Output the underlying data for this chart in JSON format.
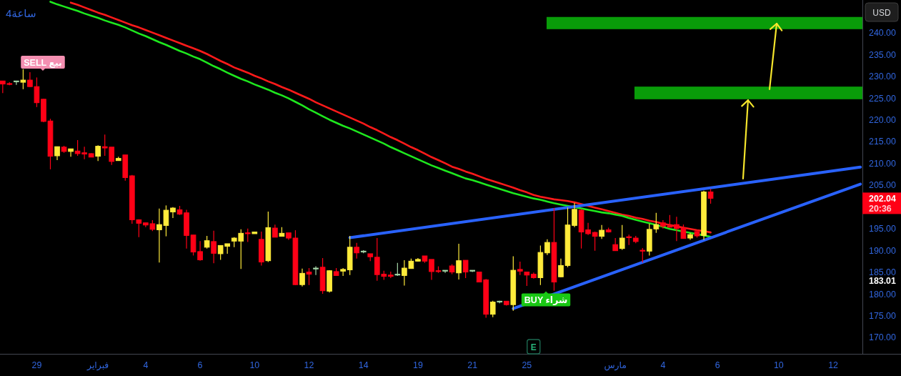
{
  "chart_data": {
    "type": "candlestick",
    "title": "4ساعة",
    "ylabel": "USD",
    "categories": [
      null,
      null,
      null,
      null,
      null,
      "29",
      null,
      null,
      null,
      null,
      null,
      null,
      null,
      null,
      "فبراير",
      null,
      null,
      null,
      null,
      null,
      null,
      "4",
      null,
      null,
      null,
      null,
      null,
      null,
      null,
      "6",
      null,
      null,
      null,
      null,
      null,
      null,
      null,
      "10",
      null,
      null,
      null,
      null,
      null,
      null,
      null,
      "12",
      null,
      null,
      null,
      null,
      null,
      null,
      null,
      "14",
      null,
      null,
      null,
      null,
      null,
      null,
      null,
      "19",
      null,
      null,
      null,
      null,
      null,
      null,
      null,
      "21",
      null,
      null,
      null,
      null,
      null,
      null,
      null,
      "25",
      null,
      null,
      null,
      null,
      null,
      null,
      null,
      null,
      null,
      null,
      null,
      null,
      "مارس",
      null,
      null,
      null,
      null,
      null,
      null,
      "4",
      null,
      null,
      null,
      null,
      null,
      null,
      null,
      "6",
      null,
      null,
      null,
      null,
      null,
      null,
      null,
      null,
      "10",
      null,
      null,
      null,
      null,
      null,
      null,
      null,
      "12",
      null,
      null,
      null,
      null
    ],
    "ohlc": [
      [
        229.0,
        229.0,
        226.2,
        228.3
      ],
      [
        228.4,
        228.7,
        228.0,
        228.3
      ],
      [
        228.8,
        229.0,
        228.1,
        229.0
      ],
      [
        228.7,
        231.7,
        227.1,
        229.2
      ],
      [
        229.2,
        231.0,
        227.6,
        227.7
      ],
      [
        227.7,
        229.8,
        223.0,
        224.0
      ],
      [
        224.8,
        224.9,
        219.5,
        219.7
      ],
      [
        219.8,
        220.3,
        208.7,
        211.7
      ],
      [
        211.8,
        213.9,
        210.8,
        213.9
      ],
      [
        213.8,
        214.1,
        212.5,
        212.8
      ],
      [
        212.8,
        213.4,
        211.6,
        213.4
      ],
      [
        212.9,
        215.4,
        211.8,
        212.3
      ],
      [
        212.5,
        213.9,
        211.0,
        212.2
      ],
      [
        212.3,
        212.4,
        211.5,
        211.5
      ],
      [
        211.7,
        214.2,
        210.6,
        214.0
      ],
      [
        213.9,
        216.7,
        211.8,
        213.6
      ],
      [
        213.8,
        213.8,
        209.7,
        210.5
      ],
      [
        210.7,
        211.6,
        210.7,
        211.2
      ],
      [
        212.0,
        212.0,
        206.1,
        206.8
      ],
      [
        207.2,
        207.4,
        196.2,
        197.1
      ],
      [
        197.1,
        197.2,
        193.1,
        196.3
      ],
      [
        196.4,
        196.4,
        195.4,
        195.9
      ],
      [
        196.2,
        197.0,
        194.5,
        194.9
      ],
      [
        194.8,
        199.7,
        187.3,
        196.0
      ],
      [
        195.8,
        200.4,
        193.3,
        199.3
      ],
      [
        198.9,
        200.0,
        197.5,
        199.8
      ],
      [
        199.4,
        200.3,
        198.2,
        198.4
      ],
      [
        198.7,
        199.4,
        190.5,
        193.5
      ],
      [
        193.6,
        193.6,
        188.9,
        189.7
      ],
      [
        189.8,
        192.2,
        187.7,
        187.9
      ],
      [
        190.8,
        193.4,
        190.5,
        192.3
      ],
      [
        192.1,
        194.6,
        187.1,
        189.4
      ],
      [
        189.3,
        191.2,
        187.9,
        191.2
      ],
      [
        191.0,
        191.6,
        189.3,
        191.6
      ],
      [
        192.2,
        193.1,
        190.8,
        192.9
      ],
      [
        192.2,
        194.9,
        185.8,
        194.0
      ],
      [
        194.1,
        195.1,
        192.0,
        194.0
      ],
      [
        193.9,
        194.3,
        193.9,
        194.3
      ],
      [
        192.6,
        194.4,
        186.6,
        187.4
      ],
      [
        187.7,
        199.0,
        187.4,
        195.3
      ],
      [
        195.2,
        196.0,
        193.1,
        193.1
      ],
      [
        193.3,
        195.4,
        193.3,
        194.0
      ],
      [
        194.1,
        194.1,
        192.5,
        192.9
      ],
      [
        192.9,
        194.7,
        182.1,
        182.2
      ],
      [
        182.2,
        185.9,
        181.8,
        184.8
      ],
      [
        185.1,
        186.0,
        182.1,
        184.6
      ],
      [
        185.9,
        186.4,
        184.4,
        186.0
      ],
      [
        186.2,
        188.3,
        180.1,
        180.8
      ],
      [
        180.7,
        185.5,
        180.4,
        185.4
      ],
      [
        185.2,
        186.0,
        184.3,
        184.3
      ],
      [
        185.3,
        186.0,
        184.2,
        185.7
      ],
      [
        185.6,
        193.4,
        184.4,
        190.8
      ],
      [
        190.8,
        191.8,
        188.2,
        189.5
      ],
      [
        189.7,
        190.1,
        189.4,
        189.9
      ],
      [
        189.3,
        189.3,
        187.6,
        188.6
      ],
      [
        188.5,
        192.9,
        183.1,
        184.5
      ],
      [
        184.6,
        185.4,
        183.3,
        184.1
      ],
      [
        184.4,
        185.2,
        183.7,
        184.1
      ],
      [
        184.4,
        187.2,
        184.2,
        184.6
      ],
      [
        184.3,
        187.8,
        182.0,
        186.0
      ],
      [
        185.9,
        188.2,
        185.9,
        187.6
      ],
      [
        187.6,
        188.3,
        187.5,
        188.0
      ],
      [
        188.8,
        188.8,
        187.2,
        187.6
      ],
      [
        188.0,
        188.0,
        183.3,
        185.2
      ],
      [
        185.4,
        186.4,
        184.9,
        185.3
      ],
      [
        185.4,
        185.5,
        184.9,
        185.5
      ],
      [
        186.5,
        186.9,
        184.6,
        185.1
      ],
      [
        184.9,
        191.6,
        183.4,
        187.7
      ],
      [
        187.8,
        187.8,
        183.7,
        185.1
      ],
      [
        185.4,
        185.5,
        185.1,
        185.5
      ],
      [
        185.1,
        185.1,
        182.8,
        182.8
      ],
      [
        183.3,
        183.5,
        174.6,
        175.4
      ],
      [
        175.4,
        178.5,
        174.7,
        178.2
      ],
      [
        178.3,
        178.5,
        177.9,
        178.4
      ],
      [
        178.4,
        178.4,
        177.4,
        177.6
      ],
      [
        177.6,
        188.7,
        176.2,
        185.5
      ],
      [
        185.7,
        187.5,
        184.4,
        185.3
      ],
      [
        185.1,
        185.2,
        181.9,
        184.4
      ],
      [
        184.6,
        185.0,
        183.6,
        183.8
      ],
      [
        183.8,
        191.2,
        182.1,
        189.6
      ],
      [
        189.5,
        192.6,
        189.0,
        191.9
      ],
      [
        191.9,
        199.8,
        180.8,
        182.8
      ],
      [
        184.0,
        188.2,
        183.9,
        186.6
      ],
      [
        186.6,
        199.9,
        186.2,
        195.9
      ],
      [
        195.8,
        201.0,
        195.4,
        199.5
      ],
      [
        199.3,
        199.6,
        190.5,
        194.3
      ],
      [
        194.8,
        196.4,
        193.6,
        193.9
      ],
      [
        194.2,
        194.4,
        190.0,
        193.3
      ],
      [
        193.3,
        195.9,
        192.7,
        194.7
      ],
      [
        194.8,
        195.3,
        194.2,
        194.3
      ],
      [
        191.4,
        192.9,
        190.0,
        190.0
      ],
      [
        190.5,
        195.9,
        190.2,
        192.9
      ],
      [
        193.2,
        193.7,
        191.3,
        193.0
      ],
      [
        192.9,
        193.4,
        191.7,
        192.1
      ],
      [
        190.1,
        190.6,
        187.3,
        190.0
      ],
      [
        189.9,
        196.2,
        188.9,
        194.9
      ],
      [
        195.0,
        198.7,
        194.1,
        196.0
      ],
      [
        196.4,
        197.0,
        195.1,
        195.6
      ],
      [
        195.7,
        198.2,
        195.3,
        195.4
      ],
      [
        196.0,
        197.8,
        192.2,
        195.1
      ],
      [
        195.2,
        196.0,
        192.8,
        192.8
      ],
      [
        192.9,
        194.1,
        192.5,
        193.7
      ],
      [
        194.4,
        194.8,
        193.0,
        193.4
      ],
      [
        193.5,
        203.8,
        192.5,
        203.5
      ],
      [
        203.5,
        204.2,
        200.8,
        202.04
      ],
      null,
      null,
      null,
      null,
      null,
      null,
      null,
      null,
      null,
      null,
      null,
      null,
      null,
      null,
      null,
      null,
      null,
      null,
      null,
      null,
      null,
      null
    ],
    "colors": [
      "#ff0016",
      "#ff0016",
      "#a5d6a7",
      "#ffeb3b",
      "#ff0016",
      "#ff0016",
      "#ff0016",
      "#ff0016",
      "#ffeb3b",
      "#ff0016",
      "#ffeb3b",
      "#ff0016",
      "#ff0016",
      "#ff0016",
      "#ffeb3b",
      "#ff0016",
      "#ff0016",
      "#ffeb3b",
      "#ff0016",
      "#ff0016",
      "#ff0016",
      "#ff0016",
      "#ff0016",
      "#ffeb3b",
      "#ffeb3b",
      "#ffeb3b",
      "#ff0016",
      "#ff0016",
      "#ff0016",
      "#ff0016",
      "#ffeb3b",
      "#ff0016",
      "#ffeb3b",
      "#ffeb3b",
      "#ffeb3b",
      "#ffeb3b",
      "#ff0016",
      "#ffeb3b",
      "#ff0016",
      "#ffeb3b",
      "#ff0016",
      "#ffeb3b",
      "#ff0016",
      "#ff0016",
      "#ffeb3b",
      "#ff0016",
      "#a5d6a7",
      "#ff0016",
      "#ffeb3b",
      "#ff0016",
      "#ffeb3b",
      "#ffeb3b",
      "#ff0016",
      "#a5d6a7",
      "#ff0016",
      "#ff0016",
      "#ff0016",
      "#ff0016",
      "#a5d6a7",
      "#ffeb3b",
      "#ffeb3b",
      "#ffeb3b",
      "#ff0016",
      "#ff0016",
      "#ff0016",
      "#a5d6a7",
      "#ff0016",
      "#ffeb3b",
      "#ff0016",
      "#a5d6a7",
      "#ff0016",
      "#ff0016",
      "#ffeb3b",
      "#a5d6a7",
      "#ff0016",
      "#ffeb3b",
      "#ff0016",
      "#ff0016",
      "#ff0016",
      "#ffeb3b",
      "#ffeb3b",
      "#ff0016",
      "#ffeb3b",
      "#ffeb3b",
      "#ffeb3b",
      "#ff0016",
      "#ff0016",
      "#ff0016",
      "#ffeb3b",
      "#ff0016",
      "#ff0016",
      "#ffeb3b",
      "#ff0016",
      "#ff0016",
      "#ff0016",
      "#ffeb3b",
      "#ffeb3b",
      "#ff0016",
      "#ff0016",
      "#ff0016",
      "#ff0016",
      "#ffeb3b",
      "#ff0016",
      "#ffeb3b",
      "#ff0016",
      null,
      null,
      null,
      null,
      null,
      null,
      null,
      null,
      null,
      null,
      null,
      null,
      null,
      null,
      null,
      null,
      null,
      null,
      null,
      null,
      null,
      null
    ],
    "series": [
      {
        "type": "line",
        "color": "#ff1a1a",
        "values": [
          null,
          null,
          null,
          null,
          null,
          null,
          null,
          null,
          null,
          null,
          247.0,
          246.5,
          245.9,
          245.3,
          244.7,
          244.2,
          243.6,
          243.0,
          242.4,
          241.8,
          241.3,
          240.7,
          240.1,
          239.5,
          238.9,
          238.3,
          237.7,
          237.1,
          236.5,
          235.9,
          235.2,
          234.4,
          233.6,
          232.9,
          232.1,
          231.5,
          230.9,
          230.2,
          229.6,
          228.9,
          228.3,
          227.6,
          227.0,
          226.3,
          225.6,
          224.9,
          224.1,
          223.4,
          222.7,
          222.0,
          221.3,
          220.6,
          219.9,
          219.2,
          218.4,
          217.7,
          216.9,
          216.1,
          215.4,
          214.6,
          213.8,
          213.1,
          212.3,
          211.5,
          210.8,
          210.1,
          209.3,
          208.8,
          208.2,
          207.7,
          207.1,
          206.5,
          206.0,
          205.5,
          205.0,
          204.5,
          203.9,
          203.4,
          202.8,
          202.4,
          202.1,
          201.8,
          201.6,
          201.4,
          201.1,
          200.7,
          200.3,
          199.9,
          199.5,
          199.1,
          198.7,
          198.3,
          198.0,
          197.6,
          197.3,
          196.9,
          196.6,
          196.2,
          195.9,
          195.6,
          195.3,
          195.0,
          194.7,
          194.5,
          194.2,
          null,
          null,
          null,
          null,
          null,
          null,
          null,
          null,
          null,
          null,
          null,
          null,
          null,
          null,
          null,
          null,
          null,
          null,
          null,
          null,
          null,
          null
        ]
      },
      {
        "type": "line",
        "color": "#1ee81e",
        "values": [
          null,
          null,
          null,
          null,
          null,
          null,
          null,
          247.2,
          246.6,
          246.1,
          245.6,
          245.1,
          244.5,
          244.0,
          243.5,
          242.9,
          242.4,
          241.9,
          241.3,
          240.6,
          239.9,
          239.3,
          238.6,
          237.9,
          237.3,
          236.6,
          235.9,
          235.3,
          234.6,
          234.0,
          233.2,
          232.4,
          231.7,
          230.9,
          230.2,
          229.5,
          228.9,
          228.2,
          227.6,
          227.0,
          226.3,
          225.7,
          225.0,
          224.2,
          223.4,
          222.5,
          221.7,
          220.9,
          220.1,
          219.4,
          218.7,
          218.1,
          217.4,
          216.7,
          216.0,
          215.3,
          214.6,
          213.8,
          213.1,
          212.4,
          211.7,
          211.0,
          210.3,
          209.6,
          209.0,
          208.4,
          207.8,
          207.2,
          206.6,
          206.2,
          205.7,
          205.2,
          204.7,
          204.2,
          203.7,
          203.2,
          202.8,
          202.4,
          202.0,
          201.7,
          201.3,
          200.9,
          200.6,
          200.3,
          200.0,
          199.7,
          199.4,
          199.1,
          198.8,
          198.6,
          198.3,
          198.0,
          197.5,
          197.1,
          196.7,
          196.3,
          195.9,
          195.5,
          195.0,
          194.7,
          194.4,
          194.1,
          193.8,
          193.5,
          193.2,
          null,
          null,
          null,
          null,
          null,
          null,
          null,
          null,
          null,
          null,
          null,
          null,
          null,
          null,
          null,
          null,
          null,
          null,
          null,
          null,
          null,
          null
        ]
      },
      {
        "type": "line",
        "color": "#2962ff",
        "values": [
          null,
          null,
          null,
          null,
          null,
          null,
          null,
          null,
          null,
          null,
          null,
          null,
          null,
          null,
          null,
          null,
          null,
          null,
          null,
          null,
          null,
          null,
          null,
          null,
          null,
          null,
          null,
          null,
          null,
          null,
          null,
          null,
          null,
          null,
          null,
          null,
          null,
          null,
          null,
          null,
          null,
          null,
          null,
          null,
          null,
          null,
          null,
          null,
          null,
          null,
          null,
          193.0,
          null,
          null,
          null,
          null,
          null,
          null,
          null,
          null,
          null,
          null,
          null,
          null,
          null,
          null,
          null,
          null,
          null,
          null,
          null,
          null,
          null,
          null,
          null,
          null,
          null,
          null,
          null,
          null,
          null,
          null,
          null,
          null,
          null,
          null,
          null,
          null,
          null,
          null,
          null,
          null,
          null,
          null,
          null,
          null,
          null,
          null,
          null,
          null,
          null,
          null,
          null,
          null,
          null,
          null,
          null,
          null,
          null,
          null,
          null,
          null,
          null,
          null,
          null,
          null,
          null,
          null,
          null,
          null,
          null,
          null,
          null,
          null,
          null,
          null,
          209.2
        ]
      },
      {
        "type": "line",
        "color": "#2962ff",
        "values": [
          null,
          null,
          null,
          null,
          null,
          null,
          null,
          null,
          null,
          null,
          null,
          null,
          null,
          null,
          null,
          null,
          null,
          null,
          null,
          null,
          null,
          null,
          null,
          null,
          null,
          null,
          null,
          null,
          null,
          null,
          null,
          null,
          null,
          null,
          null,
          null,
          null,
          null,
          null,
          null,
          null,
          null,
          null,
          null,
          null,
          null,
          null,
          null,
          null,
          null,
          null,
          null,
          null,
          null,
          null,
          null,
          null,
          null,
          null,
          null,
          null,
          null,
          null,
          null,
          null,
          null,
          null,
          null,
          null,
          null,
          null,
          null,
          null,
          null,
          null,
          176.7,
          null,
          null,
          null,
          null,
          null,
          null,
          null,
          null,
          null,
          null,
          null,
          null,
          null,
          null,
          null,
          null,
          null,
          null,
          null,
          null,
          null,
          null,
          null,
          null,
          null,
          null,
          null,
          null,
          null,
          null,
          null,
          null,
          null,
          null,
          null,
          null,
          null,
          null,
          null,
          null,
          null,
          null,
          null,
          null,
          null,
          null,
          null,
          null,
          null,
          null,
          205.3
        ]
      }
    ],
    "bands": [
      {
        "axis": "y",
        "from": 240.9,
        "to": 243.7,
        "color": "#099c09"
      },
      {
        "axis": "y",
        "from": 224.8,
        "to": 227.7,
        "color": "#099c09"
      }
    ],
    "annotations": [
      "SELL بيع",
      "BUY شراء",
      "E",
      "202.04",
      "20:36",
      "183.01"
    ],
    "ylim": [
      166.3,
      247.6
    ],
    "yticks": [
      {
        "value": 170,
        "label": "170.00"
      },
      {
        "value": 175,
        "label": "175.00"
      },
      {
        "value": 180,
        "label": "180.00"
      },
      {
        "value": 185,
        "label": "185.00"
      },
      {
        "value": 190,
        "label": "190.00"
      },
      {
        "value": 195,
        "label": "195.00"
      },
      {
        "value": 205,
        "label": "205.00"
      },
      {
        "value": 210,
        "label": "210.00"
      },
      {
        "value": 215,
        "label": "215.00"
      },
      {
        "value": 220,
        "label": "220.00"
      },
      {
        "value": 225,
        "label": "225.00"
      },
      {
        "value": 230,
        "label": "230.00"
      },
      {
        "value": 235,
        "label": "235.00"
      },
      {
        "value": 240,
        "label": "240.00"
      }
    ]
  }
}
